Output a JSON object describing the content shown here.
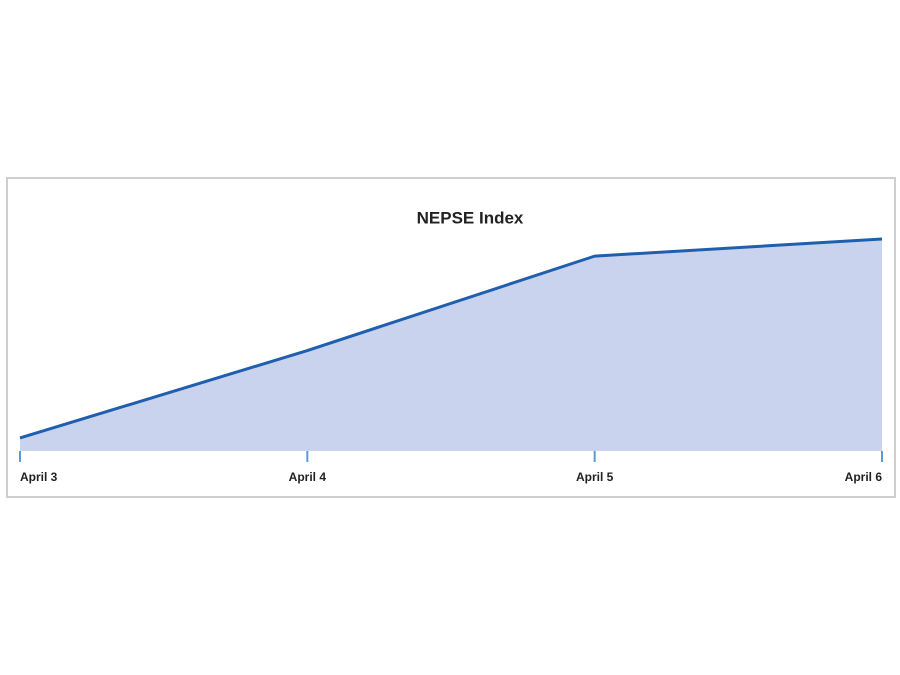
{
  "chart_data": {
    "type": "area",
    "title": "NEPSE Index",
    "categories": [
      "April 3",
      "April 4",
      "April 5",
      "April 6"
    ],
    "values": [
      13,
      100,
      194,
      211
    ],
    "color": "#1f5fad",
    "fill": "#c9d3ee",
    "tick_color": "#5b9bd5",
    "ylim": [
      0,
      220
    ]
  }
}
